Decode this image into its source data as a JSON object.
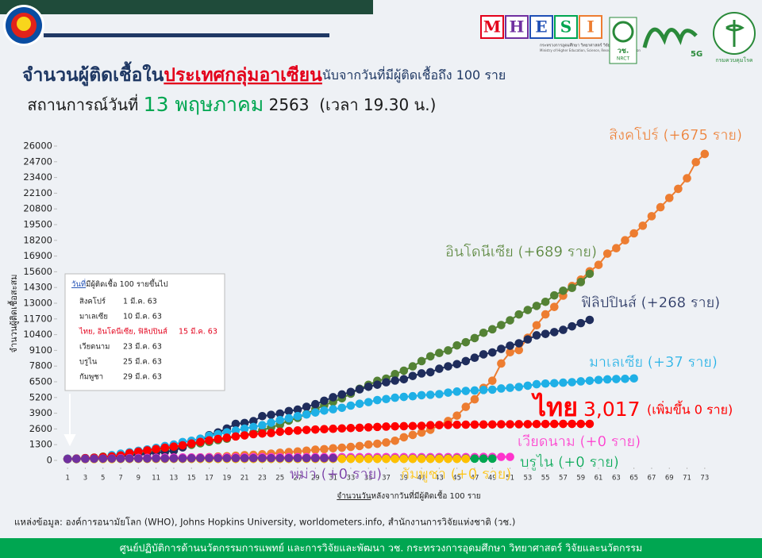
{
  "header": {
    "title": [
      "จำนวนผู้ติดเชื้อใน",
      "ประเทศกลุ่มอาเซียน",
      "นับจากวันที่มีผู้ติดเชื้อถึง 100 ราย"
    ],
    "subtitle": [
      "สถานการณ์วันที่ ",
      "13 พฤษภาคม",
      " 2563  (เวลา 19.30 น.)"
    ],
    "logos": {
      "mhesi": [
        "M",
        "H",
        "E",
        "S",
        "I"
      ],
      "ministry_th": "กระทรวงการอุดมศึกษา วิทยาศาสตร์ วิจัยและนวัตกรรม",
      "ministry_en": "Ministry of Higher Education, Science, Research and Innovation",
      "nrct_th": "วช.",
      "nrct_en": "NRCT",
      "fiveg": "5G",
      "ddc": "กรมควบคุมโรค"
    }
  },
  "note": {
    "title": [
      "วันที่",
      "มีผู้ติดเชื้อ 100 รายขึ้นไป"
    ],
    "rows": [
      [
        "สิงคโปร์",
        "1 มี.ค. 63"
      ],
      [
        "มาเลเซีย",
        "10 มี.ค. 63"
      ],
      [
        "ไทย, อินโดนีเซีย, ฟิลิปปินส์",
        "15 มี.ค. 63"
      ],
      [
        "เวียดนาม",
        "23 มี.ค. 63"
      ],
      [
        "บรูไน",
        "25 มี.ค. 63"
      ],
      [
        "กัมพูชา",
        "29 มี.ค. 63"
      ]
    ]
  },
  "chart_data": {
    "type": "line",
    "xlabel": [
      "จำนวนวัน",
      "หลังจากวันที่มีผู้ติดเชื้อ 100 ราย"
    ],
    "ylabel": "จำนวนผู้ติดเชื้อสะสม",
    "x": [
      1,
      2,
      3,
      4,
      5,
      6,
      7,
      8,
      9,
      10,
      11,
      12,
      13,
      14,
      15,
      16,
      17,
      18,
      19,
      20,
      21,
      22,
      23,
      24,
      25,
      26,
      27,
      28,
      29,
      30,
      31,
      32,
      33,
      34,
      35,
      36,
      37,
      38,
      39,
      40,
      41,
      42,
      43,
      44,
      45,
      46,
      47,
      48,
      49,
      50,
      51,
      52,
      53,
      54,
      55,
      56,
      57,
      58,
      59,
      60,
      61,
      62,
      63,
      64,
      65,
      66,
      67,
      68,
      69,
      70,
      71,
      72,
      73
    ],
    "xlim": [
      0,
      74
    ],
    "xticks": [
      1,
      3,
      5,
      7,
      9,
      11,
      13,
      15,
      17,
      19,
      21,
      23,
      25,
      27,
      29,
      31,
      33,
      35,
      37,
      39,
      41,
      43,
      45,
      47,
      49,
      51,
      53,
      55,
      57,
      59,
      61,
      63,
      65,
      67,
      69,
      71,
      73
    ],
    "ylim": [
      0,
      26000
    ],
    "yticks": [
      0,
      1300,
      2600,
      3900,
      5200,
      6500,
      7800,
      9100,
      10400,
      11700,
      13000,
      14300,
      15600,
      16900,
      18200,
      19500,
      20800,
      22100,
      23400,
      24700,
      26000
    ],
    "annotations": [
      "3,017",
      "(เพิ่มขึ้น 0 ราย)"
    ],
    "series": [
      {
        "name": "สิงคโปร์ (+675 ราย)",
        "color": "#ed7d31",
        "values": [
          106,
          108,
          110,
          112,
          117,
          130,
          138,
          150,
          160,
          166,
          178,
          187,
          200,
          212,
          226,
          243,
          266,
          313,
          345,
          385,
          432,
          455,
          509,
          558,
          631,
          683,
          732,
          802,
          879,
          926,
          1000,
          1049,
          1114,
          1189,
          1309,
          1375,
          1481,
          1623,
          1910,
          2108,
          2299,
          2532,
          2918,
          3252,
          3699,
          4427,
          5050,
          5992,
          6588,
          8014,
          8942,
          9125,
          10141,
          11178,
          12075,
          12693,
          13624,
          14423,
          14951,
          15641,
          16169,
          17101,
          17548,
          18205,
          18778,
          19410,
          20198,
          20939,
          21707,
          22460,
          23336,
          24671,
          25346
        ]
      },
      {
        "name": "อินโดนีเซีย (+689 ราย)",
        "color": "#548235",
        "values": [
          117,
          134,
          172,
          227,
          309,
          369,
          450,
          514,
          579,
          686,
          790,
          893,
          1046,
          1155,
          1285,
          1414,
          1528,
          1677,
          1790,
          1986,
          2092,
          2273,
          2491,
          2738,
          2956,
          3293,
          3512,
          3842,
          4241,
          4557,
          4839,
          5136,
          5516,
          5923,
          6248,
          6575,
          6760,
          7135,
          7418,
          7775,
          8211,
          8607,
          8882,
          9096,
          9511,
          9771,
          10118,
          10551,
          10843,
          11192,
          11587,
          12071,
          12438,
          12776,
          13112,
          13645,
          14032,
          14265,
          14749,
          15438,
          null,
          null,
          null,
          null,
          null,
          null,
          null,
          null,
          null,
          null,
          null,
          null,
          null
        ]
      },
      {
        "name": "ฟิลิปปินส์ (+268 ราย)",
        "color": "#1f2d5c",
        "values": [
          140,
          142,
          187,
          202,
          217,
          230,
          307,
          380,
          462,
          552,
          636,
          707,
          803,
          1075,
          1418,
          1546,
          2084,
          2311,
          2633,
          3018,
          3094,
          3246,
          3660,
          3764,
          3870,
          4076,
          4195,
          4428,
          4648,
          4932,
          5223,
          5453,
          5660,
          5878,
          6087,
          6259,
          6459,
          6599,
          6710,
          6981,
          7192,
          7294,
          7579,
          7777,
          7958,
          8212,
          8488,
          8772,
          8928,
          9223,
          9485,
          9684,
          10004,
          10343,
          10463,
          10610,
          10794,
          11086,
          11350,
          11618,
          null,
          null,
          null,
          null,
          null,
          null,
          null,
          null,
          null,
          null,
          null,
          null,
          null
        ]
      },
      {
        "name": "มาเลเซีย (+37 ราย)",
        "color": "#1fb0e6",
        "values": [
          129,
          149,
          158,
          197,
          238,
          428,
          553,
          673,
          790,
          900,
          1030,
          1183,
          1306,
          1518,
          1624,
          1796,
          2031,
          2161,
          2320,
          2470,
          2626,
          2766,
          2908,
          3116,
          3333,
          3483,
          3662,
          3793,
          3963,
          4119,
          4228,
          4346,
          4530,
          4683,
          4817,
          4987,
          5072,
          5182,
          5251,
          5305,
          5389,
          5425,
          5482,
          5603,
          5691,
          5742,
          5780,
          5820,
          5851,
          5945,
          6002,
          6071,
          6176,
          6298,
          6353,
          6383,
          6428,
          6467,
          6535,
          6589,
          6656,
          6699,
          6726,
          6742,
          6779,
          null,
          null,
          null,
          null,
          null,
          null,
          null,
          null
        ]
      },
      {
        "name": "ไทย",
        "color": "#ff0000",
        "values": [
          114,
          147,
          177,
          212,
          272,
          322,
          411,
          599,
          721,
          827,
          934,
          1045,
          1136,
          1245,
          1388,
          1524,
          1651,
          1771,
          1875,
          1978,
          2067,
          2169,
          2220,
          2258,
          2369,
          2423,
          2473,
          2518,
          2551,
          2579,
          2613,
          2643,
          2672,
          2700,
          2733,
          2765,
          2792,
          2811,
          2826,
          2839,
          2854,
          2907,
          2922,
          2931,
          2947,
          2954,
          2960,
          2966,
          2969,
          2987,
          2988,
          2989,
          2992,
          3004,
          3009,
          3015,
          3017,
          3017,
          3017,
          3017,
          null,
          null,
          null,
          null,
          null,
          null,
          null,
          null,
          null,
          null,
          null,
          null,
          null
        ]
      },
      {
        "name": "เวียดนาม (+0 ราย)",
        "color": "#ff33cc",
        "values": [
          113,
          123,
          134,
          141,
          153,
          163,
          174,
          188,
          203,
          207,
          218,
          233,
          237,
          240,
          241,
          245,
          249,
          251,
          255,
          257,
          262,
          265,
          266,
          268,
          268,
          268,
          268,
          268,
          270,
          270,
          270,
          270,
          270,
          271,
          271,
          271,
          271,
          271,
          271,
          271,
          271,
          271,
          271,
          271,
          271,
          271,
          271,
          288,
          288,
          288,
          288,
          null,
          null,
          null,
          null,
          null,
          null,
          null,
          null,
          null,
          null,
          null,
          null,
          null,
          null,
          null,
          null,
          null,
          null,
          null,
          null,
          null,
          null
        ]
      },
      {
        "name": "บรูไน (+0 ราย)",
        "color": "#00a651",
        "values": [
          104,
          109,
          114,
          115,
          120,
          126,
          127,
          129,
          131,
          133,
          134,
          135,
          135,
          135,
          136,
          136,
          136,
          136,
          136,
          136,
          137,
          137,
          138,
          138,
          138,
          138,
          138,
          138,
          138,
          138,
          138,
          138,
          138,
          138,
          138,
          138,
          138,
          138,
          138,
          139,
          141,
          141,
          141,
          141,
          141,
          141,
          141,
          141,
          141,
          null,
          null,
          null,
          null,
          null,
          null,
          null,
          null,
          null,
          null,
          null,
          null,
          null,
          null,
          null,
          null,
          null,
          null,
          null,
          null,
          null,
          null,
          null,
          null
        ]
      },
      {
        "name": "กัมพูชา (+0 ราย)",
        "color": "#ffc000",
        "values": [
          103,
          107,
          107,
          109,
          109,
          109,
          114,
          114,
          115,
          117,
          117,
          119,
          119,
          120,
          122,
          122,
          122,
          122,
          122,
          122,
          122,
          122,
          122,
          122,
          122,
          122,
          122,
          122,
          122,
          122,
          122,
          122,
          122,
          122,
          122,
          122,
          122,
          122,
          122,
          122,
          122,
          122,
          122,
          122,
          122,
          122,
          null,
          null,
          null,
          null,
          null,
          null,
          null,
          null,
          null,
          null,
          null,
          null,
          null,
          null,
          null,
          null,
          null,
          null,
          null,
          null,
          null,
          null,
          null,
          null,
          null,
          null,
          null
        ]
      },
      {
        "name": "พม่า (+0 ราย)",
        "color": "#7030a0",
        "values": [
          110,
          119,
          127,
          139,
          144,
          146,
          146,
          150,
          151,
          155,
          161,
          161,
          161,
          162,
          176,
          177,
          178,
          178,
          180,
          180,
          180,
          180,
          180,
          181,
          181,
          181,
          182,
          182,
          182,
          182,
          182,
          null,
          null,
          null,
          null,
          null,
          null,
          null,
          null,
          null,
          null,
          null,
          null,
          null,
          null,
          null,
          null,
          null,
          null,
          null,
          null,
          null,
          null,
          null,
          null,
          null,
          null,
          null,
          null,
          null,
          null,
          null,
          null,
          null,
          null,
          null,
          null,
          null,
          null,
          null,
          null,
          null,
          null
        ]
      }
    ]
  },
  "source": "แหล่งข้อมูล: องค์การอนามัยโลก (WHO), Johns Hopkins University, worldometers.info, สำนักงานการวิจัยแห่งชาติ (วช.)",
  "footer": "ศูนย์ปฏิบัติการด้านนวัตกรรมการแพทย์ และการวิจัยและพัฒนา  วช.   กระทรวงการอุดมศึกษา วิทยาศาสตร์ วิจัยและนวัตกรรม"
}
